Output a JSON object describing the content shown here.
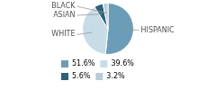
{
  "chart_data": {
    "type": "pie",
    "categories": [
      "HISPANIC",
      "WHITE",
      "ASIAN",
      "BLACK"
    ],
    "values": [
      51.6,
      39.6,
      5.6,
      3.2
    ],
    "value_labels": [
      "51.6%",
      "39.6%",
      "5.6%",
      "3.2%"
    ],
    "colors": [
      "#6b9db8",
      "#c8dce8",
      "#2e607a",
      "#b8cdd8"
    ],
    "legend": "lower left"
  }
}
